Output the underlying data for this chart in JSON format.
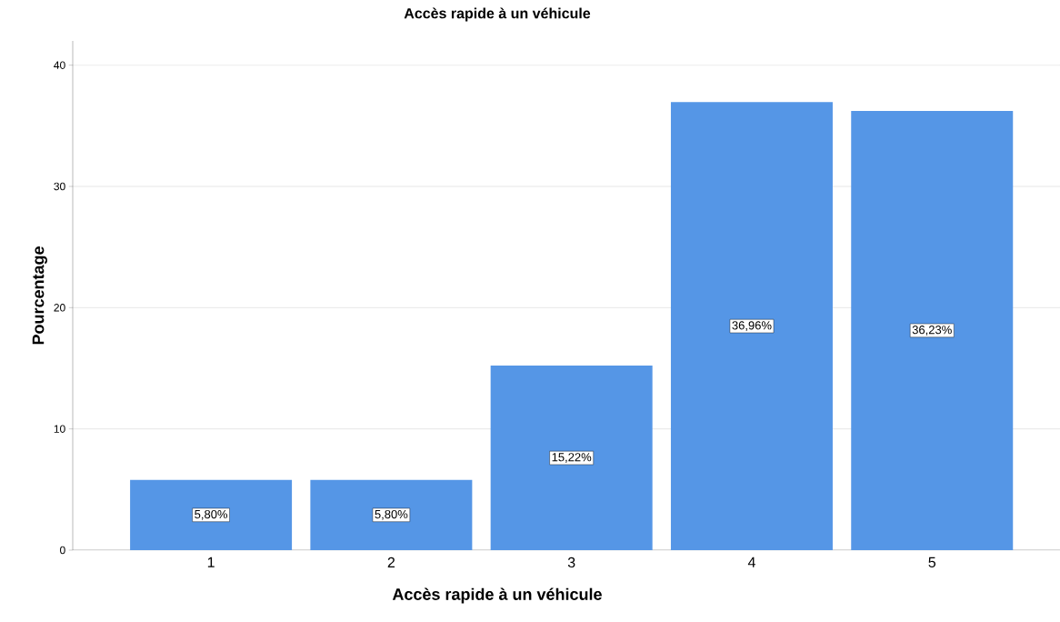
{
  "chart_data": {
    "type": "bar",
    "title": "Accès rapide à un véhicule",
    "xlabel": "Accès rapide à un véhicule",
    "ylabel": "Pourcentage",
    "categories": [
      "1",
      "2",
      "3",
      "4",
      "5"
    ],
    "values": [
      5.8,
      5.8,
      15.22,
      36.96,
      36.23
    ],
    "value_labels": [
      "5,80%",
      "5,80%",
      "15,22%",
      "36,96%",
      "36,23%"
    ],
    "color": "#5596e6",
    "ylim": [
      0,
      42
    ],
    "yticks": [
      0,
      10,
      20,
      30,
      40
    ],
    "grid": "y"
  }
}
